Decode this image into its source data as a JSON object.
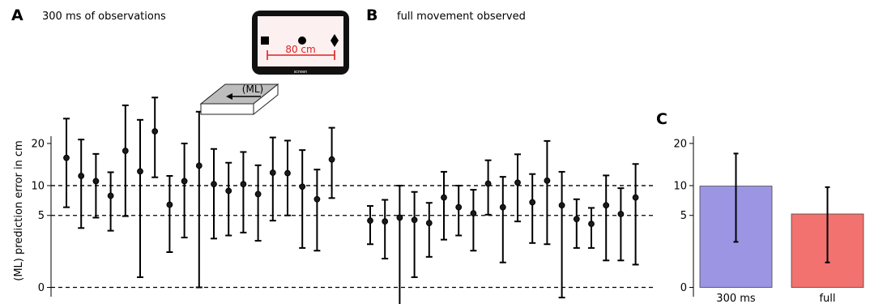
{
  "figure": {
    "panel_letters": [
      "A",
      "B",
      "C"
    ],
    "panel_titles": [
      "300 ms of observations",
      "full movement observed"
    ],
    "inset": {
      "distance_label": "80 cm",
      "screen_label": "screen",
      "direction_label": "(ML)"
    }
  },
  "chart_data": [
    {
      "panel": "A",
      "type": "scatter",
      "title": "300 ms of observations",
      "ylabel": "(ML) prediction error in cm",
      "yscale": "sqrt",
      "ylim": [
        0,
        35
      ],
      "yticks": [
        0,
        5,
        10,
        20
      ],
      "reference_lines": [
        0,
        5,
        10
      ],
      "points": [
        {
          "y": 16.2,
          "low": 6.2,
          "high": 27.5
        },
        {
          "y": 12.0,
          "low": 3.4,
          "high": 21.1
        },
        {
          "y": 10.9,
          "low": 4.7,
          "high": 17.2
        },
        {
          "y": 8.1,
          "low": 3.1,
          "high": 12.8
        },
        {
          "y": 18.0,
          "low": 4.9,
          "high": 32.0
        },
        {
          "y": 13.0,
          "low": 0.1,
          "high": 27.1
        },
        {
          "y": 23.5,
          "low": 11.7,
          "high": 34.8
        },
        {
          "y": 6.6,
          "low": 1.2,
          "high": 12.0
        },
        {
          "y": 10.9,
          "low": 2.4,
          "high": 20.0
        },
        {
          "y": 14.3,
          "low": 0.0,
          "high": 29.8
        },
        {
          "y": 10.3,
          "low": 2.3,
          "high": 18.5
        },
        {
          "y": 9.0,
          "low": 2.6,
          "high": 15.0
        },
        {
          "y": 10.3,
          "low": 2.9,
          "high": 17.7
        },
        {
          "y": 8.4,
          "low": 2.1,
          "high": 14.4
        },
        {
          "y": 12.7,
          "low": 4.3,
          "high": 21.7
        },
        {
          "y": 12.6,
          "low": 5.0,
          "high": 20.8
        },
        {
          "y": 9.8,
          "low": 1.5,
          "high": 18.2
        },
        {
          "y": 7.5,
          "low": 1.3,
          "high": 13.4
        },
        {
          "y": 15.8,
          "low": 7.7,
          "high": 24.6
        }
      ]
    },
    {
      "panel": "B",
      "type": "scatter",
      "title": "full movement observed",
      "yscale": "sqrt",
      "ylim": [
        0,
        35
      ],
      "yticks": [
        0,
        5,
        10,
        20
      ],
      "reference_lines": [
        0,
        5,
        10
      ],
      "points": [
        {
          "y": 4.3,
          "low": 1.8,
          "high": 6.4
        },
        {
          "y": 4.2,
          "low": 0.8,
          "high": 7.4
        },
        {
          "y": 4.7,
          "low": -0.5,
          "high": 10.0
        },
        {
          "y": 4.4,
          "low": 0.1,
          "high": 8.8
        },
        {
          "y": 4.0,
          "low": 0.9,
          "high": 6.9
        },
        {
          "y": 7.8,
          "low": 2.2,
          "high": 12.9
        },
        {
          "y": 6.2,
          "low": 2.6,
          "high": 10.0
        },
        {
          "y": 5.3,
          "low": 1.3,
          "high": 9.2
        },
        {
          "y": 10.4,
          "low": 5.1,
          "high": 15.6
        },
        {
          "y": 6.2,
          "low": 0.6,
          "high": 11.8
        },
        {
          "y": 10.6,
          "low": 4.2,
          "high": 17.1
        },
        {
          "y": 7.0,
          "low": 1.9,
          "high": 12.4
        },
        {
          "y": 11.0,
          "low": 1.8,
          "high": 20.7
        },
        {
          "y": 6.5,
          "low": -0.1,
          "high": 12.9
        },
        {
          "y": 4.5,
          "low": 1.5,
          "high": 7.5
        },
        {
          "y": 3.9,
          "low": 1.5,
          "high": 6.1
        },
        {
          "y": 6.5,
          "low": 0.7,
          "high": 12.1
        },
        {
          "y": 5.2,
          "low": 0.7,
          "high": 9.5
        },
        {
          "y": 7.8,
          "low": 0.5,
          "high": 14.7
        }
      ]
    },
    {
      "panel": "C",
      "type": "bar",
      "yscale": "sqrt",
      "ylim": [
        0,
        35
      ],
      "yticks": [
        0,
        5,
        10,
        20
      ],
      "categories": [
        "300 ms",
        "full"
      ],
      "values": [
        9.9,
        5.2
      ],
      "error_low": [
        2.0,
        0.6
      ],
      "error_high": [
        17.3,
        9.7
      ],
      "colors": [
        "#9b95e4",
        "#f2726f"
      ]
    }
  ]
}
